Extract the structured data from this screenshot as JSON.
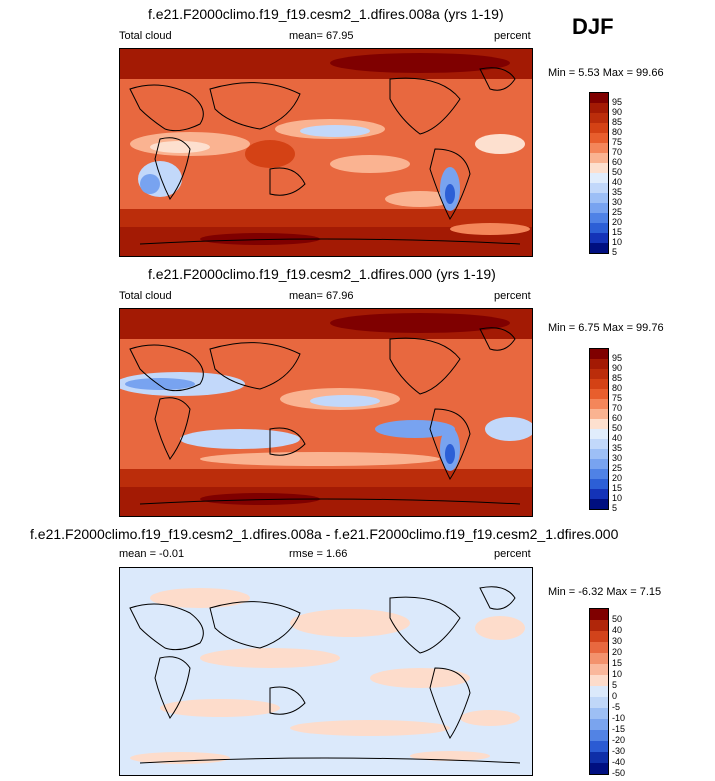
{
  "season": "DJF",
  "panels": [
    {
      "title": "f.e21.F2000climo.f19_f19.cesm2_1.dfires.008a (yrs 1-19)",
      "left_label": "Total cloud",
      "center_label": "mean=  67.95",
      "right_label": "percent",
      "minmax": "Min =  5.53 Max =  99.66",
      "colorbar_labels": [
        "95",
        "90",
        "85",
        "80",
        "75",
        "70",
        "60",
        "50",
        "40",
        "35",
        "30",
        "25",
        "20",
        "15",
        "10",
        "5"
      ]
    },
    {
      "title": "f.e21.F2000climo.f19_f19.cesm2_1.dfires.000 (yrs 1-19)",
      "left_label": "Total cloud",
      "center_label": "mean=  67.96",
      "right_label": "percent",
      "minmax": "Min =  6.75 Max =  99.76",
      "colorbar_labels": [
        "95",
        "90",
        "85",
        "80",
        "75",
        "70",
        "60",
        "50",
        "40",
        "35",
        "30",
        "25",
        "20",
        "15",
        "10",
        "5"
      ]
    },
    {
      "title": "f.e21.F2000climo.f19_f19.cesm2_1.dfires.008a - f.e21.F2000climo.f19_f19.cesm2_1.dfires.000",
      "left_label": "mean =  -0.01",
      "center_label": "rmse =  1.66",
      "right_label": "percent",
      "minmax": "Min =  -6.32 Max =  7.15",
      "colorbar_labels": [
        "50",
        "40",
        "30",
        "20",
        "15",
        "10",
        "5",
        "0",
        "-5",
        "-10",
        "-15",
        "-20",
        "-30",
        "-40",
        "-50"
      ]
    }
  ],
  "colors": {
    "abs_scale": [
      "#7f0000",
      "#a31a04",
      "#bb2d0b",
      "#d44215",
      "#e85e2d",
      "#f4865a",
      "#fab391",
      "#fde0cf",
      "#e1edfc",
      "#c2d8fa",
      "#9dbff6",
      "#78a3f0",
      "#4f82e6",
      "#2c5fd6",
      "#1433b8",
      "#000f80"
    ],
    "diff_scale": [
      "#7f0000",
      "#b0260a",
      "#d2431b",
      "#e8683f",
      "#f3926d",
      "#fab89c",
      "#fddccb",
      "#dbe9fb",
      "#c0d7f8",
      "#9dbff4",
      "#7aa4ee",
      "#5283e4",
      "#2b5bd3",
      "#0f2fa8",
      "#000f80"
    ]
  }
}
